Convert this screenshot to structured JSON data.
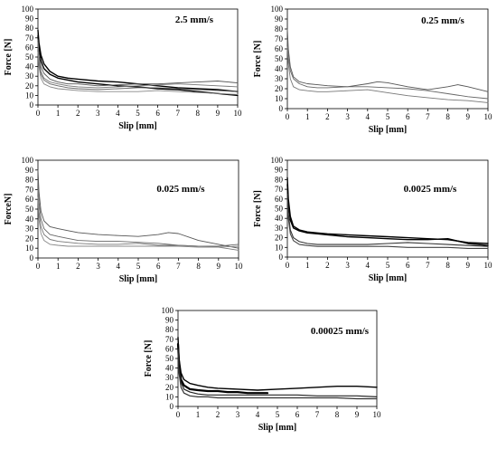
{
  "chart_data": [
    {
      "type": "line",
      "annotation": "2.5 mm/s",
      "xlabel": "Slip [mm]",
      "ylabel": "Force [N]",
      "xlim": [
        0,
        10
      ],
      "ylim": [
        0,
        100
      ],
      "xticks": [
        0,
        1,
        2,
        3,
        4,
        5,
        6,
        7,
        8,
        9,
        10
      ],
      "yticks": [
        0,
        10,
        20,
        30,
        40,
        50,
        60,
        70,
        80,
        90,
        100
      ],
      "grid": false,
      "series": [
        {
          "x": [
            0,
            0.05,
            0.15,
            0.3,
            0.6,
            1,
            1.5,
            2,
            3,
            4,
            5,
            6,
            7,
            8,
            9,
            10
          ],
          "y": [
            78,
            65,
            52,
            43,
            35,
            30,
            28,
            27,
            25,
            24,
            22,
            20,
            18,
            17,
            16,
            14
          ],
          "color": "#000000",
          "width": 1.4
        },
        {
          "x": [
            0,
            0.05,
            0.15,
            0.3,
            0.6,
            1,
            1.5,
            2,
            3,
            4,
            5,
            6,
            7,
            8,
            9,
            10
          ],
          "y": [
            72,
            60,
            46,
            38,
            32,
            28,
            26,
            24,
            22,
            20,
            19,
            17,
            16,
            14,
            12,
            10
          ],
          "color": "#000000",
          "width": 1.4
        },
        {
          "x": [
            0,
            0.05,
            0.15,
            0.3,
            0.6,
            1,
            1.5,
            2,
            3,
            4,
            5,
            6,
            7,
            8,
            9,
            10
          ],
          "y": [
            68,
            52,
            40,
            33,
            27,
            24,
            22,
            22,
            20,
            21,
            22,
            22,
            23,
            24,
            25,
            23
          ],
          "color": "#555555",
          "width": 0.9
        },
        {
          "x": [
            0,
            0.05,
            0.15,
            0.3,
            0.6,
            1,
            1.5,
            2,
            3,
            4,
            5,
            6,
            7,
            8,
            9,
            10
          ],
          "y": [
            65,
            48,
            35,
            28,
            24,
            22,
            20,
            19,
            18,
            19,
            20,
            21,
            22,
            21,
            20,
            19
          ],
          "color": "#777777",
          "width": 0.9
        },
        {
          "x": [
            0,
            0.05,
            0.15,
            0.3,
            0.6,
            1,
            1.5,
            2,
            3,
            4,
            5,
            6,
            7,
            8,
            9,
            10
          ],
          "y": [
            60,
            44,
            32,
            26,
            22,
            20,
            18,
            17,
            16,
            17,
            18,
            18,
            17,
            16,
            15,
            14
          ],
          "color": "#666666",
          "width": 0.9
        },
        {
          "x": [
            0,
            0.05,
            0.15,
            0.3,
            0.6,
            1,
            1.5,
            2,
            3,
            4,
            5,
            6,
            7,
            8,
            9,
            10
          ],
          "y": [
            55,
            40,
            28,
            22,
            19,
            17,
            16,
            15,
            14,
            14,
            14,
            15,
            14,
            13,
            12,
            11
          ],
          "color": "#888888",
          "width": 0.9
        }
      ]
    },
    {
      "type": "line",
      "annotation": "0.25 mm/s",
      "xlabel": "Slip [mm]",
      "ylabel": "Force [N]",
      "xlim": [
        0,
        10
      ],
      "ylim": [
        0,
        100
      ],
      "xticks": [
        0,
        1,
        2,
        3,
        4,
        5,
        6,
        7,
        8,
        9,
        10
      ],
      "yticks": [
        0,
        10,
        20,
        30,
        40,
        50,
        60,
        70,
        80,
        90,
        100
      ],
      "grid": false,
      "series": [
        {
          "x": [
            0,
            0.05,
            0.15,
            0.3,
            0.6,
            1,
            1.5,
            2,
            3,
            4,
            4.5,
            5,
            6,
            7,
            8,
            8.5,
            9,
            10
          ],
          "y": [
            80,
            60,
            42,
            32,
            27,
            25,
            24,
            23,
            22,
            25,
            27,
            26,
            22,
            19,
            22,
            24,
            22,
            17
          ],
          "color": "#555555",
          "width": 0.9
        },
        {
          "x": [
            0,
            0.05,
            0.15,
            0.3,
            0.6,
            1,
            1.5,
            2,
            3,
            4,
            5,
            6,
            7,
            8,
            9,
            10
          ],
          "y": [
            70,
            52,
            38,
            30,
            25,
            22,
            21,
            21,
            22,
            22,
            21,
            20,
            18,
            15,
            12,
            10
          ],
          "color": "#666666",
          "width": 0.9
        },
        {
          "x": [
            0,
            0.05,
            0.15,
            0.3,
            0.6,
            1,
            1.5,
            2,
            3,
            4,
            5,
            6,
            7,
            8,
            9,
            10
          ],
          "y": [
            62,
            45,
            30,
            22,
            19,
            18,
            17,
            17,
            18,
            19,
            16,
            13,
            11,
            9,
            8,
            6
          ],
          "color": "#777777",
          "width": 0.9
        }
      ]
    },
    {
      "type": "line",
      "annotation": "0.025 mm/s",
      "xlabel": "Slip [mm]",
      "ylabel": "ForceN]",
      "xlim": [
        0,
        10
      ],
      "ylim": [
        0,
        100
      ],
      "xticks": [
        0,
        1,
        2,
        3,
        4,
        5,
        6,
        7,
        8,
        9,
        10
      ],
      "yticks": [
        0,
        10,
        20,
        30,
        40,
        50,
        60,
        70,
        80,
        90,
        100
      ],
      "grid": false,
      "series": [
        {
          "x": [
            0,
            0.05,
            0.15,
            0.3,
            0.6,
            1,
            1.5,
            2,
            3,
            4,
            5,
            6,
            6.5,
            7,
            8,
            9,
            10
          ],
          "y": [
            90,
            68,
            48,
            38,
            32,
            30,
            28,
            26,
            24,
            23,
            22,
            24,
            26,
            25,
            18,
            14,
            10
          ],
          "color": "#555555",
          "width": 0.9
        },
        {
          "x": [
            0,
            0.05,
            0.15,
            0.3,
            0.6,
            1,
            1.5,
            2,
            3,
            4,
            5,
            6,
            7,
            8,
            9,
            10
          ],
          "y": [
            80,
            58,
            40,
            30,
            24,
            22,
            20,
            18,
            17,
            17,
            16,
            15,
            13,
            12,
            12,
            14
          ],
          "color": "#666666",
          "width": 0.9
        },
        {
          "x": [
            0,
            0.05,
            0.15,
            0.3,
            0.6,
            1,
            1.5,
            2,
            3,
            4,
            5,
            6,
            7,
            8,
            9,
            10
          ],
          "y": [
            70,
            48,
            32,
            24,
            19,
            17,
            16,
            15,
            14,
            14,
            15,
            13,
            13,
            12,
            11,
            8
          ],
          "color": "#777777",
          "width": 0.9
        },
        {
          "x": [
            0,
            0.05,
            0.15,
            0.3,
            0.6,
            1,
            1.5,
            2,
            3,
            4,
            5,
            6,
            7,
            8,
            9,
            10
          ],
          "y": [
            62,
            40,
            25,
            18,
            14,
            13,
            12,
            12,
            12,
            12,
            12,
            12,
            12,
            11,
            11,
            12
          ],
          "color": "#888888",
          "width": 0.9
        }
      ]
    },
    {
      "type": "line",
      "annotation": "0.0025 mm/s",
      "xlabel": "Slip [mm]",
      "ylabel": "Force [N]",
      "xlim": [
        0,
        10
      ],
      "ylim": [
        0,
        100
      ],
      "xticks": [
        0,
        1,
        2,
        3,
        4,
        5,
        6,
        7,
        8,
        9,
        10
      ],
      "yticks": [
        0,
        10,
        20,
        30,
        40,
        50,
        60,
        70,
        80,
        90,
        100
      ],
      "grid": false,
      "series": [
        {
          "x": [
            0,
            0.05,
            0.15,
            0.3,
            0.6,
            1,
            1.5,
            2,
            3,
            4,
            5,
            6,
            7,
            8,
            9,
            10
          ],
          "y": [
            82,
            60,
            42,
            32,
            28,
            26,
            25,
            24,
            23,
            22,
            21,
            20,
            19,
            18,
            15,
            14
          ],
          "color": "#000000",
          "width": 1.4
        },
        {
          "x": [
            0,
            0.05,
            0.15,
            0.3,
            0.6,
            1,
            1.5,
            2,
            3,
            4,
            5,
            6,
            7,
            8,
            9,
            10
          ],
          "y": [
            75,
            55,
            38,
            30,
            27,
            25,
            24,
            23,
            21,
            20,
            19,
            18,
            18,
            19,
            14,
            12
          ],
          "color": "#000000",
          "width": 1.4
        },
        {
          "x": [
            0,
            0.05,
            0.15,
            0.3,
            0.6,
            1,
            1.5,
            2,
            3,
            4,
            5,
            6,
            7,
            8,
            9,
            10
          ],
          "y": [
            65,
            45,
            28,
            20,
            16,
            14,
            13,
            13,
            13,
            13,
            14,
            15,
            14,
            13,
            12,
            11
          ],
          "color": "#333333",
          "width": 1.1
        },
        {
          "x": [
            0,
            0.05,
            0.15,
            0.3,
            0.6,
            1,
            1.5,
            2,
            3,
            4,
            5,
            6,
            7,
            8,
            9,
            10
          ],
          "y": [
            58,
            40,
            24,
            17,
            13,
            12,
            11,
            11,
            11,
            11,
            11,
            10,
            10,
            10,
            9,
            9
          ],
          "color": "#444444",
          "width": 1.1
        }
      ]
    },
    {
      "type": "line",
      "annotation": "0.00025 mm/s",
      "xlabel": "Slip [mm]",
      "ylabel": "Force [N]",
      "xlim": [
        0,
        10
      ],
      "ylim": [
        0,
        100
      ],
      "xticks": [
        0,
        1,
        2,
        3,
        4,
        5,
        6,
        7,
        8,
        9,
        10
      ],
      "yticks": [
        0,
        10,
        20,
        30,
        40,
        50,
        60,
        70,
        80,
        90,
        100
      ],
      "grid": false,
      "series": [
        {
          "x": [
            0,
            0.05,
            0.15,
            0.3,
            0.6,
            1,
            1.5,
            2,
            3,
            4,
            5,
            6,
            7,
            8,
            9,
            10
          ],
          "y": [
            72,
            50,
            35,
            28,
            24,
            22,
            20,
            19,
            18,
            17,
            18,
            19,
            20,
            21,
            21,
            20
          ],
          "color": "#000000",
          "width": 1.4
        },
        {
          "x": [
            0,
            0.05,
            0.15,
            0.3,
            0.6,
            1,
            1.5,
            2,
            2.5,
            3,
            3.5,
            4,
            4.5
          ],
          "y": [
            65,
            45,
            28,
            22,
            18,
            17,
            16,
            16,
            15,
            15,
            14,
            14,
            14
          ],
          "color": "#000000",
          "width": 2.2
        },
        {
          "x": [
            0,
            0.05,
            0.15,
            0.3,
            0.6,
            1,
            1.5,
            2,
            3,
            4,
            5,
            6,
            7,
            8,
            9,
            10
          ],
          "y": [
            60,
            40,
            25,
            18,
            15,
            13,
            12,
            12,
            12,
            12,
            12,
            12,
            11,
            11,
            11,
            10
          ],
          "color": "#222222",
          "width": 1.2
        },
        {
          "x": [
            0,
            0.05,
            0.15,
            0.3,
            0.6,
            1,
            1.5,
            2,
            3,
            4,
            5,
            6,
            7,
            8,
            9,
            10
          ],
          "y": [
            55,
            35,
            20,
            14,
            11,
            10,
            10,
            9,
            9,
            9,
            9,
            9,
            9,
            9,
            8,
            8
          ],
          "color": "#333333",
          "width": 1.2
        }
      ]
    }
  ]
}
